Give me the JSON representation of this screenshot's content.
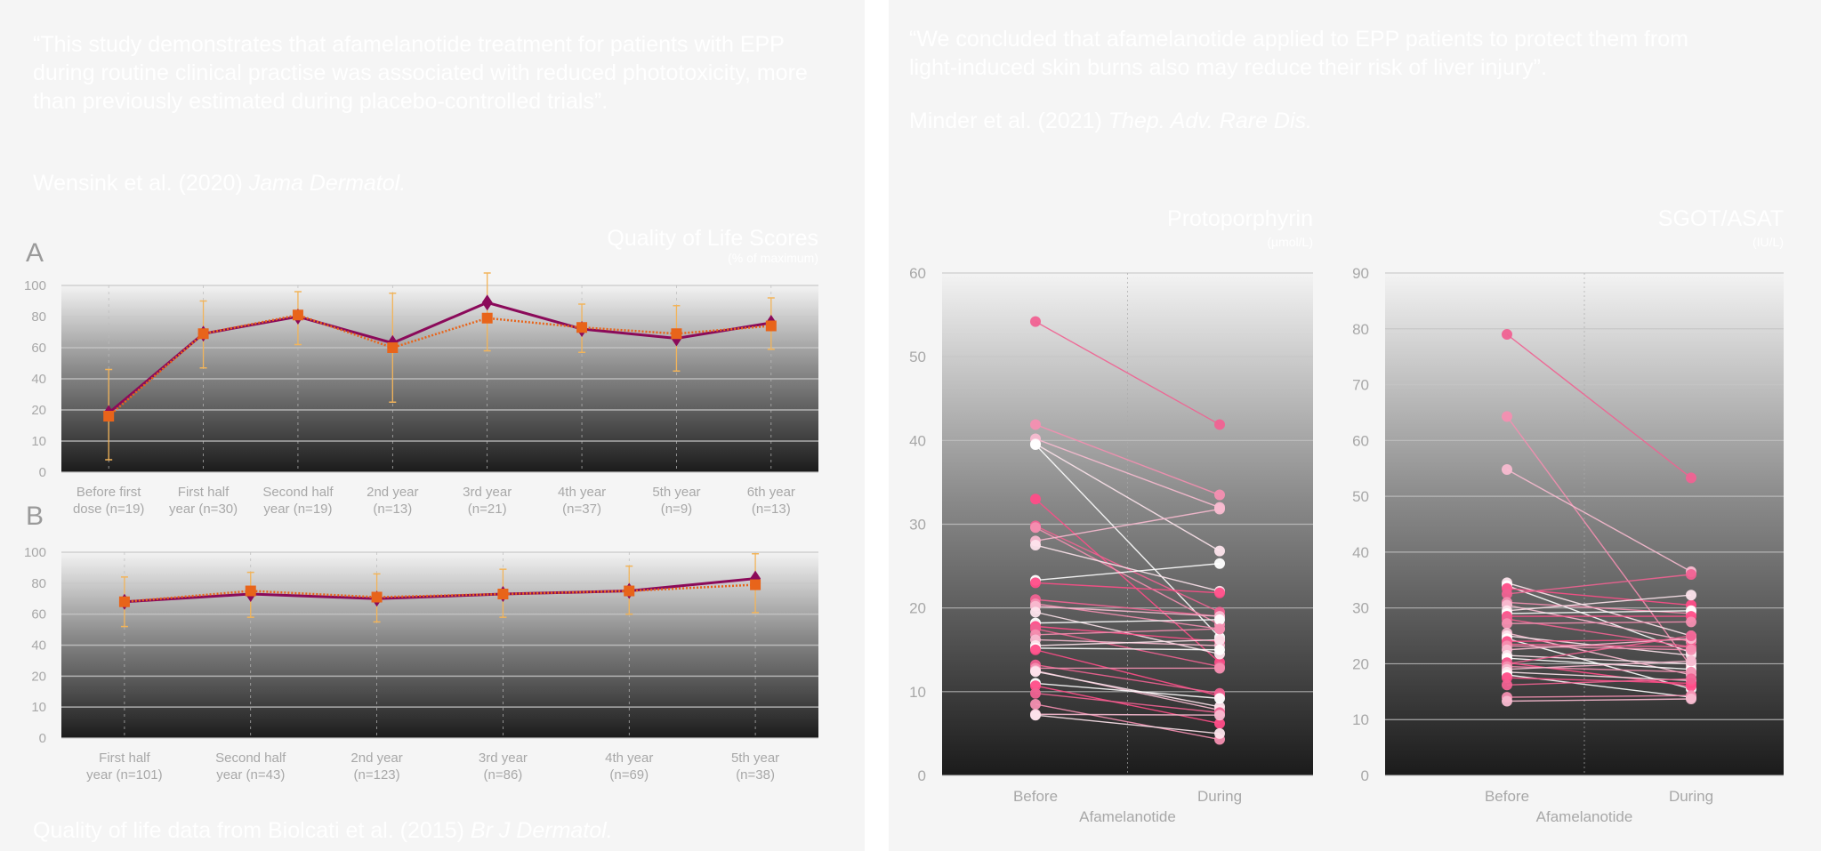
{
  "left": {
    "quote": "“This study demonstrates that afamelanotide treatment for patients with EPP during routine clinical practise was associated with reduced phototoxicity, more than previously estimated during placebo-controlled trials”.",
    "citation_authors": "Wensink et al. (2020) ",
    "citation_journal": "Jama Dermatol.",
    "panel_a_letter": "A",
    "panel_b_letter": "B",
    "chart_title": "Quality of Life Scores",
    "chart_subtitle": "(% of maximum)",
    "footer_authors": "Quality of life data from Biolcati et al. (2015) ",
    "footer_journal": "Br J Dermatol."
  },
  "right": {
    "quote": "“We concluded that afamelanotide applied to EPP patients to protect them from light-induced skin burns also may reduce their risk of liver injury”.",
    "citation_authors": "Minder et al. (2021) ",
    "citation_journal": "Thep. Adv. Rare Dis."
  },
  "colors": {
    "purple": "#8b0a5a",
    "orange": "#e8641a",
    "errorbar": "#f2b45a",
    "pink_palette": [
      "#ff4d88",
      "#f06292",
      "#f48fb1",
      "#f8bbd0",
      "#fde4ec",
      "#ffffff"
    ]
  },
  "chart_data": [
    {
      "id": "qol_a",
      "type": "line",
      "title": "Quality of Life Scores",
      "subtitle": "(% of maximum)",
      "yticks": [
        "0",
        "10",
        "20",
        "40",
        "60",
        "80",
        "100"
      ],
      "ytick_values": [
        0,
        10,
        20,
        40,
        60,
        80,
        100
      ],
      "categories": [
        [
          "Before first",
          "dose (n=19)"
        ],
        [
          "First half",
          "year (n=30)"
        ],
        [
          "Second half",
          "year (n=19)"
        ],
        [
          "2nd year",
          "(n=13)"
        ],
        [
          "3rd year",
          "(n=21)"
        ],
        [
          "4th year",
          "(n=37)"
        ],
        [
          "5th year",
          "(n=9)"
        ],
        [
          "6th year",
          "(n=13)"
        ]
      ],
      "series": [
        {
          "name": "diamond",
          "values": [
            19,
            69,
            80,
            63,
            89,
            72,
            66,
            76
          ]
        },
        {
          "name": "square",
          "values": [
            18,
            69,
            81,
            60,
            79,
            73,
            69,
            74
          ],
          "error_low": [
            4,
            47,
            62,
            25,
            58,
            57,
            45,
            59
          ],
          "error_high": [
            46,
            90,
            96,
            95,
            108,
            88,
            87,
            92
          ]
        }
      ]
    },
    {
      "id": "qol_b",
      "type": "line",
      "yticks": [
        "0",
        "10",
        "20",
        "40",
        "60",
        "80",
        "100"
      ],
      "ytick_values": [
        0,
        10,
        20,
        40,
        60,
        80,
        100
      ],
      "categories": [
        [
          "First half",
          "year (n=101)"
        ],
        [
          "Second half",
          "year (n=43)"
        ],
        [
          "2nd year",
          "(n=123)"
        ],
        [
          "3rd year",
          "(n=86)"
        ],
        [
          "4th year",
          "(n=69)"
        ],
        [
          "5th year",
          "(n=38)"
        ]
      ],
      "series": [
        {
          "name": "diamond",
          "values": [
            68,
            73,
            70,
            73,
            75,
            83
          ]
        },
        {
          "name": "square",
          "values": [
            68,
            75,
            71,
            73,
            75,
            79
          ],
          "error_low": [
            52,
            58,
            55,
            58,
            60,
            61
          ],
          "error_high": [
            84,
            87,
            86,
            89,
            91,
            99
          ]
        }
      ]
    },
    {
      "id": "protoporphyrin",
      "type": "scatter",
      "title": "Protoporphyrin",
      "unit": "(µmol/L)",
      "xlabel": "Afamelanotide",
      "categories": [
        "Before",
        "During"
      ],
      "yticks": [
        "0",
        "10",
        "20",
        "30",
        "40",
        "50",
        "60"
      ],
      "ylim": [
        0,
        60
      ],
      "pairs": [
        [
          54.2,
          41.9
        ],
        [
          41.9,
          33.5
        ],
        [
          40.2,
          32.0
        ],
        [
          39.6,
          26.8
        ],
        [
          39.5,
          16.5
        ],
        [
          33,
          13.5
        ],
        [
          29.8,
          19.5
        ],
        [
          29.6,
          18
        ],
        [
          28,
          31.8
        ],
        [
          27.5,
          22
        ],
        [
          23.3,
          25.3
        ],
        [
          23,
          21.8
        ],
        [
          21,
          19
        ],
        [
          20.5,
          17.5
        ],
        [
          20.2,
          19
        ],
        [
          19.5,
          14.5
        ],
        [
          18.2,
          18.6
        ],
        [
          17.8,
          16
        ],
        [
          17.5,
          13
        ],
        [
          16.8,
          17.5
        ],
        [
          16.2,
          15.5
        ],
        [
          15.5,
          16.2
        ],
        [
          15.2,
          15
        ],
        [
          15,
          9.5
        ],
        [
          13.2,
          9.8
        ],
        [
          12.8,
          12.8
        ],
        [
          12.5,
          7.8
        ],
        [
          12.4,
          8.2
        ],
        [
          11,
          9.2
        ],
        [
          10.7,
          6.2
        ],
        [
          9.8,
          7.5
        ],
        [
          8.5,
          4.3
        ],
        [
          7.3,
          7.2
        ],
        [
          7.2,
          5
        ]
      ]
    },
    {
      "id": "sgot_asat",
      "type": "scatter",
      "title": "SGOT/ASAT",
      "unit": "(IU/L)",
      "xlabel": "Afamelanotide",
      "categories": [
        "Before",
        "During"
      ],
      "yticks": [
        "0",
        "10",
        "20",
        "30",
        "40",
        "50",
        "60",
        "70",
        "80",
        "90"
      ],
      "ylim": [
        0,
        90
      ],
      "pairs": [
        [
          79,
          53.3
        ],
        [
          64.3,
          19.5
        ],
        [
          54.8,
          36.5
        ],
        [
          34.5,
          25
        ],
        [
          34,
          22
        ],
        [
          33.5,
          30.5
        ],
        [
          32.5,
          36
        ],
        [
          31,
          29
        ],
        [
          30.5,
          24
        ],
        [
          29.5,
          32.3
        ],
        [
          29,
          29.5
        ],
        [
          28.5,
          28.5
        ],
        [
          28,
          23
        ],
        [
          27.2,
          27.5
        ],
        [
          25.5,
          18
        ],
        [
          25,
          21.5
        ],
        [
          24.5,
          15.5
        ],
        [
          24,
          24.3
        ],
        [
          23.5,
          23
        ],
        [
          23.2,
          22.5
        ],
        [
          22.5,
          24.5
        ],
        [
          21.5,
          20
        ],
        [
          21,
          19
        ],
        [
          20.2,
          16
        ],
        [
          20,
          25
        ],
        [
          19.5,
          18.5
        ],
        [
          19,
          20.5
        ],
        [
          18.5,
          17
        ],
        [
          18,
          14
        ],
        [
          17.5,
          16.5
        ],
        [
          16.2,
          17.3
        ],
        [
          14,
          14.3
        ],
        [
          13.3,
          13.7
        ]
      ]
    }
  ]
}
